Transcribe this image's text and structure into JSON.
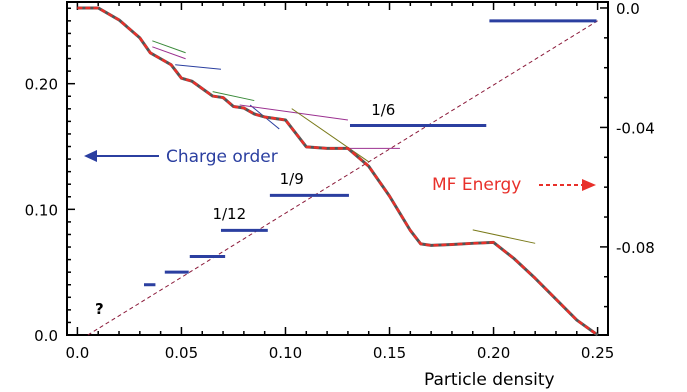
{
  "chart_data": {
    "type": "line",
    "xlabel": "Particle density",
    "x_range": [
      -0.005,
      0.255
    ],
    "x_ticks": [
      0.0,
      0.05,
      0.1,
      0.15,
      0.2,
      0.25
    ],
    "x_tick_labels": [
      "0.0",
      "0.05",
      "0.10",
      "0.15",
      "0.20",
      "0.25"
    ],
    "left_axis": {
      "range": [
        0.0,
        0.265
      ],
      "ticks": [
        0.0,
        0.1,
        0.2
      ],
      "tick_labels": [
        "0.0",
        "0.10",
        "0.20"
      ]
    },
    "right_axis": {
      "range": [
        -0.1095,
        0.002
      ],
      "ticks": [
        0.0,
        -0.04,
        -0.08
      ],
      "tick_labels": [
        "0.0",
        "-0.04",
        "-0.08"
      ]
    },
    "grid": false,
    "series": [
      {
        "kind": "steps",
        "axis": "left",
        "color": "#2b3fa0",
        "steps": [
          {
            "x0": 0.032,
            "x1": 0.0375,
            "y": 0.04
          },
          {
            "x0": 0.042,
            "x1": 0.0535,
            "y": 0.05
          },
          {
            "x0": 0.054,
            "x1": 0.071,
            "y": 0.0625
          },
          {
            "x0": 0.069,
            "x1": 0.0915,
            "y": 0.0833
          },
          {
            "x0": 0.0925,
            "x1": 0.1305,
            "y": 0.1111
          },
          {
            "x0": 0.131,
            "x1": 0.1965,
            "y": 0.1667
          },
          {
            "x0": 0.198,
            "x1": 0.2495,
            "y": 0.25
          }
        ]
      },
      {
        "kind": "reference",
        "axis": "left",
        "color": "#8b1a3a",
        "style": "dashed",
        "x": [
          0.005,
          0.25
        ],
        "y": [
          0.0,
          0.25
        ]
      },
      {
        "kind": "energy",
        "axis": "right",
        "color": "#e8302a",
        "style": "dashed",
        "x": [
          0.0,
          0.01,
          0.02,
          0.03,
          0.035,
          0.04,
          0.045,
          0.05,
          0.055,
          0.06,
          0.065,
          0.07,
          0.075,
          0.08,
          0.085,
          0.09,
          0.1,
          0.11,
          0.12,
          0.13,
          0.14,
          0.15,
          0.16,
          0.165,
          0.17,
          0.18,
          0.19,
          0.2,
          0.21,
          0.22,
          0.23,
          0.24,
          0.25
        ],
        "y": [
          0.0,
          0.0,
          -0.004,
          -0.01,
          -0.015,
          -0.017,
          -0.019,
          -0.0235,
          -0.0245,
          -0.027,
          -0.0295,
          -0.03,
          -0.033,
          -0.0335,
          -0.0355,
          -0.0365,
          -0.0375,
          -0.0465,
          -0.047,
          -0.047,
          -0.053,
          -0.063,
          -0.0745,
          -0.079,
          -0.0795,
          -0.0792,
          -0.0788,
          -0.0785,
          -0.084,
          -0.0905,
          -0.0975,
          -0.1045,
          -0.1095
        ]
      }
    ],
    "fit_lines": [
      {
        "color": "#3a8a3a",
        "x": [
          0.036,
          0.052
        ],
        "y": [
          -0.011,
          -0.015
        ]
      },
      {
        "color": "#9b3090",
        "x": [
          0.036,
          0.052
        ],
        "y": [
          -0.013,
          -0.017
        ]
      },
      {
        "color": "#2b3fa0",
        "x": [
          0.047,
          0.069
        ],
        "y": [
          -0.019,
          -0.0205
        ]
      },
      {
        "color": "#3a8a3a",
        "x": [
          0.065,
          0.085
        ],
        "y": [
          -0.028,
          -0.031
        ]
      },
      {
        "color": "#2b3fa0",
        "x": [
          0.083,
          0.097
        ],
        "y": [
          -0.0325,
          -0.0405
        ]
      },
      {
        "color": "#9b3090",
        "x": [
          0.078,
          0.13
        ],
        "y": [
          -0.0325,
          -0.0375
        ]
      },
      {
        "color": "#7a7a1a",
        "x": [
          0.103,
          0.14
        ],
        "y": [
          -0.0337,
          -0.0515
        ]
      },
      {
        "color": "#9b3090",
        "x": [
          0.118,
          0.155
        ],
        "y": [
          -0.047,
          -0.047
        ]
      },
      {
        "color": "#7a7a1a",
        "x": [
          0.19,
          0.22
        ],
        "y": [
          -0.0743,
          -0.0788
        ]
      }
    ],
    "annotations": {
      "charge_order": "Charge order",
      "mf_energy": "MF Energy",
      "question": "?",
      "step_labels": [
        {
          "text": "1/6",
          "x": 0.147,
          "y": 0.172
        },
        {
          "text": "1/9",
          "x": 0.103,
          "y": 0.117
        },
        {
          "text": "1/12",
          "x": 0.073,
          "y": 0.089
        }
      ]
    },
    "colors": {
      "charge_order": "#2b3fa0",
      "mf_energy": "#e8302a",
      "reference": "#8b1a3a"
    }
  }
}
